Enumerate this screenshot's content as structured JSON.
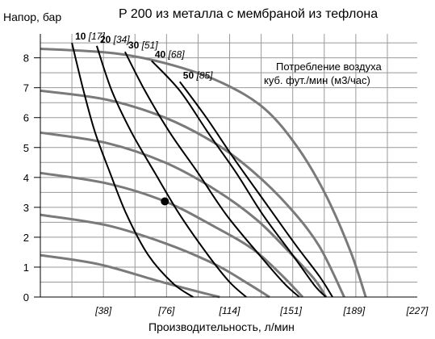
{
  "chart_data": {
    "type": "line",
    "title": "P 200 из металла с мембраной из тефлона",
    "ylabel": "Напор, бар",
    "xlabel": "Производительность, л/мин",
    "ylim": [
      0,
      8.8
    ],
    "xlim": [
      0,
      227
    ],
    "grid": true,
    "y_ticks": [
      "0",
      "1",
      "2",
      "3",
      "4",
      "5",
      "6",
      "7",
      "8"
    ],
    "x_ticks": [
      {
        "value": 38,
        "label": "[38]"
      },
      {
        "value": 76,
        "label": "[76]"
      },
      {
        "value": 114,
        "label": "[114]"
      },
      {
        "value": 151,
        "label": "[151]"
      },
      {
        "value": 189,
        "label": "[189]"
      },
      {
        "value": 227,
        "label": "[227]"
      }
    ],
    "legend_text": [
      "Потребление воздуха",
      "куб. фут./мин (м3/час)"
    ],
    "air_pressure_curves": [
      {
        "points": [
          [
            0,
            8.3
          ],
          [
            45,
            8.15
          ],
          [
            80,
            7.75
          ],
          [
            110,
            7.15
          ],
          [
            135,
            6.3
          ],
          [
            155,
            5.0
          ],
          [
            172,
            3.4
          ],
          [
            187,
            1.5
          ],
          [
            196,
            0
          ]
        ]
      },
      {
        "points": [
          [
            0,
            6.9
          ],
          [
            40,
            6.6
          ],
          [
            75,
            6.0
          ],
          [
            105,
            5.15
          ],
          [
            128,
            4.2
          ],
          [
            150,
            3.0
          ],
          [
            168,
            1.7
          ],
          [
            183,
            0
          ]
        ]
      },
      {
        "points": [
          [
            0,
            5.5
          ],
          [
            40,
            5.15
          ],
          [
            75,
            4.5
          ],
          [
            105,
            3.6
          ],
          [
            130,
            2.6
          ],
          [
            150,
            1.5
          ],
          [
            165,
            0.6
          ],
          [
            172,
            0
          ]
        ]
      },
      {
        "points": [
          [
            0,
            4.15
          ],
          [
            40,
            3.8
          ],
          [
            75,
            3.2
          ],
          [
            105,
            2.35
          ],
          [
            128,
            1.6
          ],
          [
            145,
            0.75
          ],
          [
            158,
            0
          ]
        ]
      },
      {
        "points": [
          [
            0,
            2.75
          ],
          [
            40,
            2.4
          ],
          [
            75,
            1.8
          ],
          [
            105,
            1.1
          ],
          [
            125,
            0.45
          ],
          [
            138,
            0
          ]
        ]
      },
      {
        "points": [
          [
            0,
            1.4
          ],
          [
            35,
            1.1
          ],
          [
            70,
            0.55
          ],
          [
            90,
            0.25
          ],
          [
            108,
            0
          ]
        ]
      }
    ],
    "air_consumption_curves": [
      {
        "value": "10",
        "label_bracket": "[17]",
        "points": [
          [
            19,
            8.5
          ],
          [
            26,
            6.9
          ],
          [
            33,
            5.5
          ],
          [
            42,
            4.15
          ],
          [
            52,
            2.75
          ],
          [
            65,
            1.4
          ],
          [
            80,
            0.45
          ],
          [
            92,
            0
          ]
        ]
      },
      {
        "value": "20",
        "label_bracket": "[34]",
        "points": [
          [
            34,
            8.4
          ],
          [
            43,
            6.9
          ],
          [
            55,
            5.5
          ],
          [
            69,
            4.15
          ],
          [
            84,
            2.75
          ],
          [
            101,
            1.4
          ],
          [
            114,
            0.5
          ],
          [
            124,
            0
          ]
        ]
      },
      {
        "value": "30",
        "label_bracket": "[51]",
        "points": [
          [
            51,
            8.2
          ],
          [
            63,
            6.9
          ],
          [
            78,
            5.5
          ],
          [
            95,
            4.15
          ],
          [
            112,
            2.75
          ],
          [
            132,
            1.4
          ],
          [
            147,
            0.45
          ],
          [
            156,
            0
          ]
        ]
      },
      {
        "value": "40",
        "label_bracket": "[68]",
        "points": [
          [
            67,
            7.9
          ],
          [
            84,
            6.9
          ],
          [
            101,
            5.5
          ],
          [
            118,
            4.15
          ],
          [
            134,
            2.75
          ],
          [
            152,
            1.4
          ],
          [
            165,
            0.4
          ],
          [
            172,
            0
          ]
        ]
      },
      {
        "value": "50",
        "label_bracket": "[85]",
        "points": [
          [
            84,
            7.2
          ],
          [
            100,
            6.0
          ],
          [
            117,
            4.6
          ],
          [
            135,
            3.2
          ],
          [
            153,
            1.8
          ],
          [
            168,
            0.7
          ],
          [
            176,
            0
          ]
        ]
      }
    ],
    "marker": {
      "x": 75,
      "y": 3.2
    }
  }
}
